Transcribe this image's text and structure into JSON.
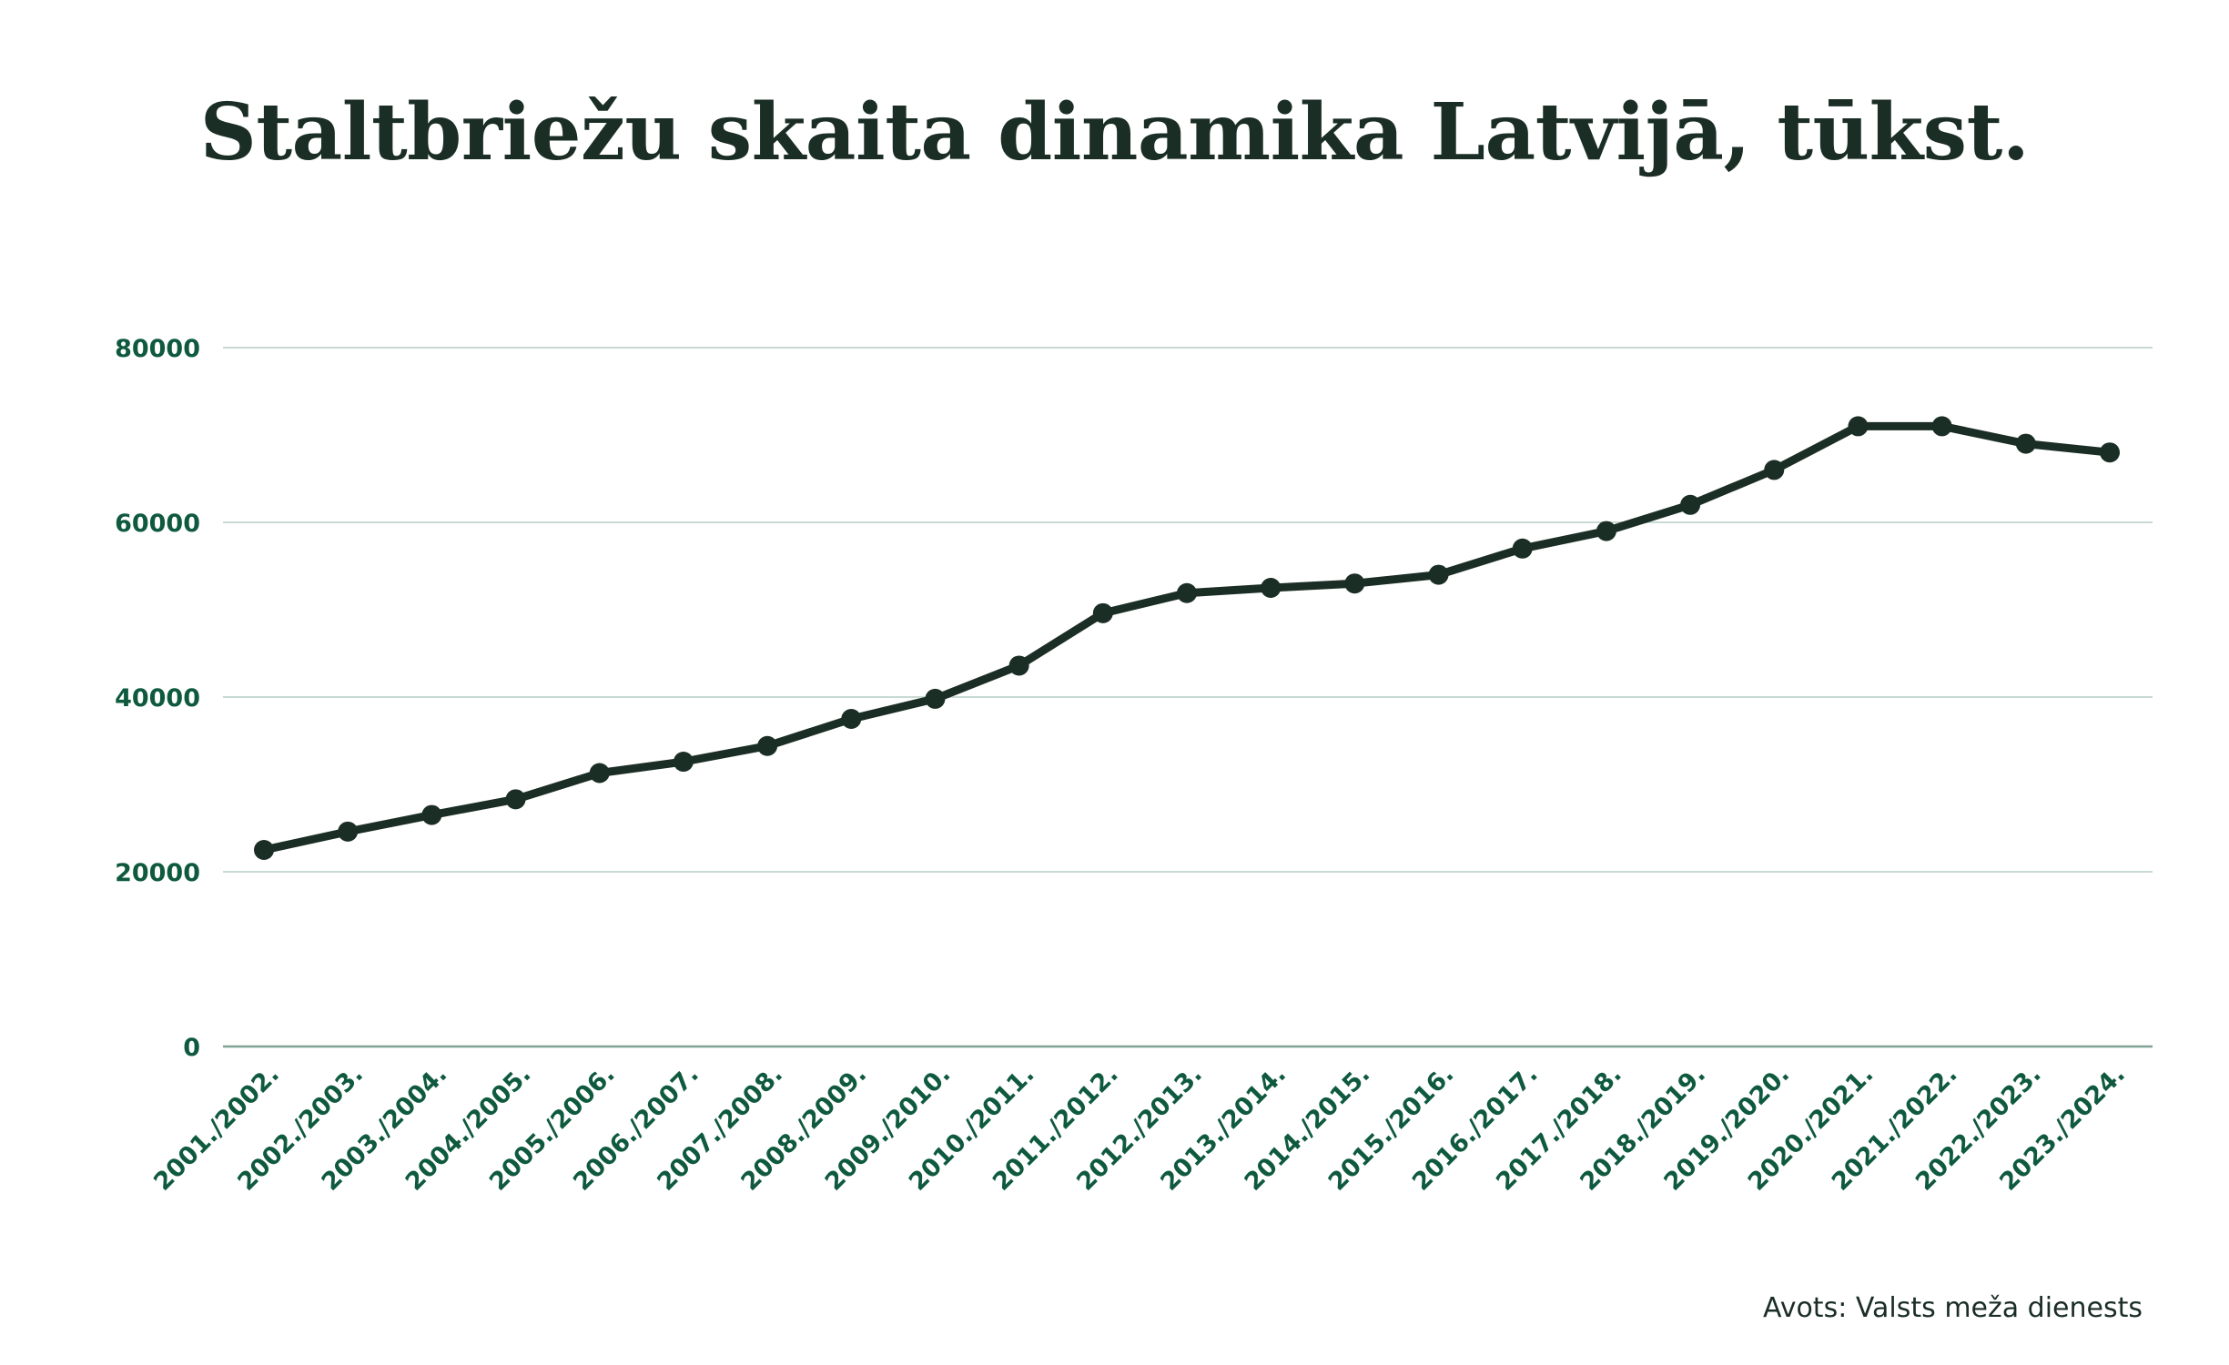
{
  "chart_data": {
    "type": "line",
    "title": "Staltbriežu skaita dinamika Latvijā, tūkst.",
    "xlabel": "",
    "ylabel": "",
    "ylim": [
      0,
      80000
    ],
    "yticks": [
      "0",
      "20000",
      "40000",
      "60000",
      "80000"
    ],
    "categories": [
      "2001./2002.",
      "2002./2003.",
      "2003./2004.",
      "2004./2005.",
      "2005./2006.",
      "2006./2007.",
      "2007./2008.",
      "2008./2009.",
      "2009./2010.",
      "2010./2011.",
      "2011./2012.",
      "2012./2013.",
      "2013./2014.",
      "2014./2015.",
      "2015./2016.",
      "2016./2017.",
      "2017./2018.",
      "2018./2019.",
      "2019./2020.",
      "2020./2021.",
      "2021./2022.",
      "2022./2023.",
      "2023./2024."
    ],
    "series": [
      {
        "values": [
          22500,
          24600,
          26500,
          28300,
          31300,
          32600,
          34400,
          37500,
          39800,
          43600,
          49600,
          51900,
          52500,
          53000,
          54000,
          57000,
          59000,
          62000,
          66000,
          71000,
          71000,
          69000,
          68000
        ]
      }
    ],
    "grid": true,
    "legend": "none"
  },
  "colors": {
    "line": "#1b2e26",
    "tick_text": "#0f5a3f",
    "grid": "#c9d9d3",
    "axis": "#7fa395"
  },
  "source": "Avots: Valsts meža dienests"
}
